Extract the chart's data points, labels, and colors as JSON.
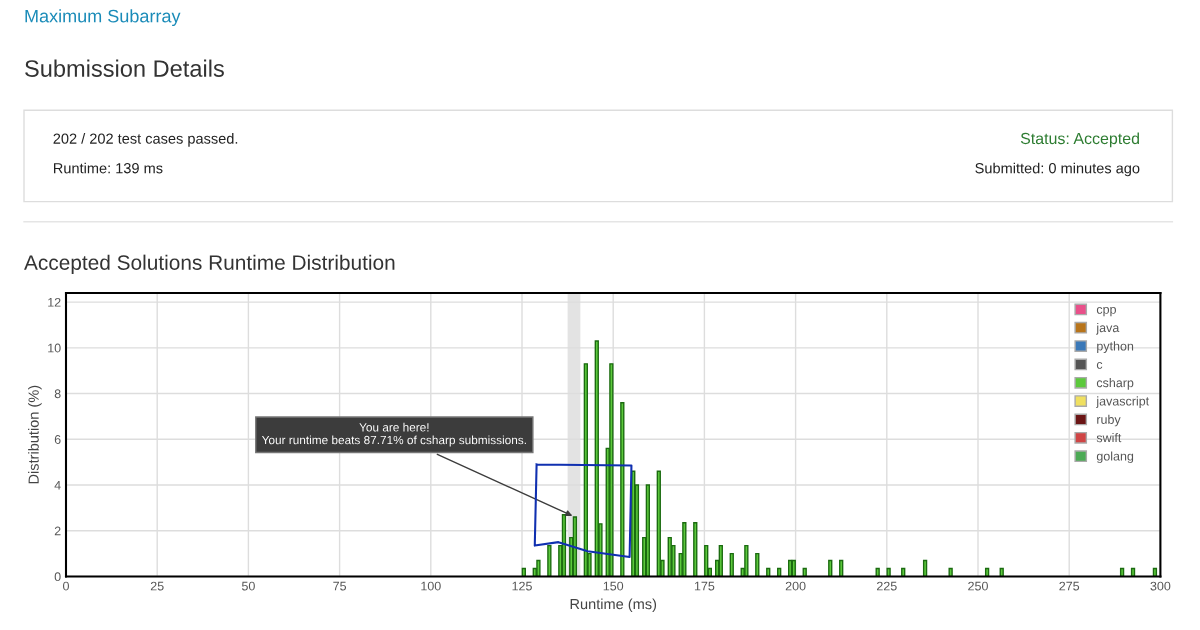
{
  "chart_data": {
    "type": "bar",
    "title": "Accepted Solutions Runtime Distribution",
    "xlabel": "Runtime (ms)",
    "ylabel": "Distribution (%)",
    "xlim": [
      0,
      300
    ],
    "xticks": [
      0,
      25,
      50,
      75,
      100,
      125,
      150,
      175,
      200,
      225,
      250,
      275,
      300
    ],
    "ylim": [
      0,
      12.4
    ],
    "yticks": [
      0,
      2,
      4,
      6,
      8,
      10,
      12
    ],
    "grid": true,
    "legend": "top right",
    "bands": [
      {
        "axis": "x",
        "from": 137.5,
        "to": 141,
        "color": "#e3e3e3"
      }
    ],
    "series": [
      {
        "name": "cpp",
        "color": "#e9508a"
      },
      {
        "name": "java",
        "color": "#b8741a"
      },
      {
        "name": "python",
        "color": "#3a78b8"
      },
      {
        "name": "c",
        "color": "#555555"
      },
      {
        "name": "csharp",
        "color": "#5cc93c",
        "x": [
          125.5,
          128.5,
          129.5,
          132.5,
          135.5,
          136.5,
          138.5,
          139.5,
          142.5,
          143.5,
          145.5,
          146.5,
          148.5,
          149.5,
          152.5,
          155.5,
          156.5,
          158.5,
          159.5,
          162.5,
          163.5,
          165.5,
          166.5,
          168.5,
          169.5,
          172.5,
          175.5,
          176.5,
          178.5,
          179.5,
          182.5,
          185.5,
          186.5,
          189.5,
          192.5,
          195.5,
          198.5,
          199.5,
          202.5,
          209.5,
          212.5,
          222.5,
          225.5,
          229.5,
          235.5,
          242.5,
          252.5,
          256.5,
          289.5,
          292.5,
          298.5
        ],
        "values": [
          0.35,
          0.35,
          0.7,
          1.35,
          1.35,
          2.7,
          1.7,
          2.6,
          9.3,
          1.0,
          10.3,
          2.3,
          5.6,
          9.3,
          7.6,
          4.6,
          4.0,
          1.7,
          4.0,
          4.6,
          0.7,
          1.7,
          1.35,
          1.0,
          2.35,
          2.35,
          1.35,
          0.35,
          0.7,
          1.35,
          1.0,
          0.35,
          1.35,
          1.0,
          0.35,
          0.35,
          0.7,
          0.7,
          0.35,
          0.7,
          0.7,
          0.35,
          0.35,
          0.35,
          0.7,
          0.35,
          0.35,
          0.35,
          0.35,
          0.35,
          0.35
        ]
      },
      {
        "name": "javascript",
        "color": "#f0e060"
      },
      {
        "name": "ruby",
        "color": "#6b1515"
      },
      {
        "name": "swift",
        "color": "#d04545"
      },
      {
        "name": "golang",
        "color": "#4caa55"
      }
    ],
    "annotations": [
      "Maximum Subarray",
      "Submission Details",
      "202 / 202 test cases passed.",
      "Runtime: 139 ms",
      "Status: Accepted",
      "Submitted: 0 minutes ago",
      {
        "text": "You are here!\nYour runtime beats 87.71% of csharp submissions.",
        "x": 139.5,
        "y": 2.6
      }
    ]
  }
}
